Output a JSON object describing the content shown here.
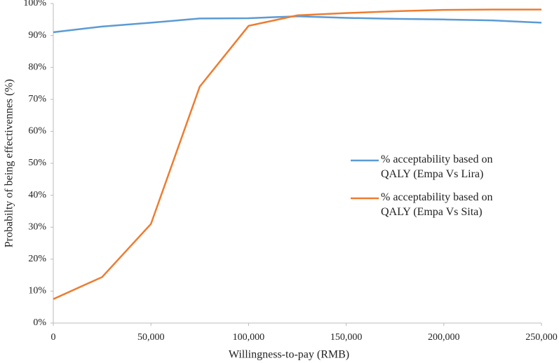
{
  "chart_data": {
    "type": "line",
    "x_label": "Willingness-to-pay (RMB)",
    "y_label": "Probabilty of being effectivennes (%)",
    "x": [
      0,
      25000,
      50000,
      75000,
      100000,
      125000,
      150000,
      175000,
      200000,
      225000,
      250000
    ],
    "series": [
      {
        "name": "% acceptability based on QALY (Empa Vs Lira)",
        "color": "#5b9bd5",
        "values": [
          91,
          92.8,
          94,
          95.3,
          95.4,
          96,
          95.5,
          95.2,
          95,
          94.7,
          94
        ]
      },
      {
        "name": "% acceptability based on QALY (Empa Vs Sita)",
        "color": "#ed7d31",
        "values": [
          7.5,
          14.4,
          31,
          74,
          93,
          96.3,
          97,
          97.6,
          98,
          98.1,
          98.1
        ]
      }
    ],
    "xlim": [
      0,
      250000
    ],
    "xticks": [
      0,
      {
        "value": 50000,
        "label": "50,000"
      },
      {
        "value": 100000,
        "label": "100,000"
      },
      {
        "value": 150000,
        "label": "150,000"
      },
      {
        "value": 200000,
        "label": "200,000"
      },
      {
        "value": 250000,
        "label": "250,000"
      }
    ],
    "ylim": [
      0,
      100
    ],
    "yticks": [
      {
        "value": 0,
        "label": "0%"
      },
      {
        "value": 10,
        "label": "10%"
      },
      {
        "value": 20,
        "label": "20%"
      },
      {
        "value": 30,
        "label": "30%"
      },
      {
        "value": 40,
        "label": "40%"
      },
      {
        "value": 50,
        "label": "50%"
      },
      {
        "value": 60,
        "label": "60%"
      },
      {
        "value": 70,
        "label": "70%"
      },
      {
        "value": 80,
        "label": "80%"
      },
      {
        "value": 90,
        "label": "90%"
      },
      {
        "value": 100,
        "label": "100%"
      }
    ],
    "grid": false,
    "legend": "right"
  }
}
